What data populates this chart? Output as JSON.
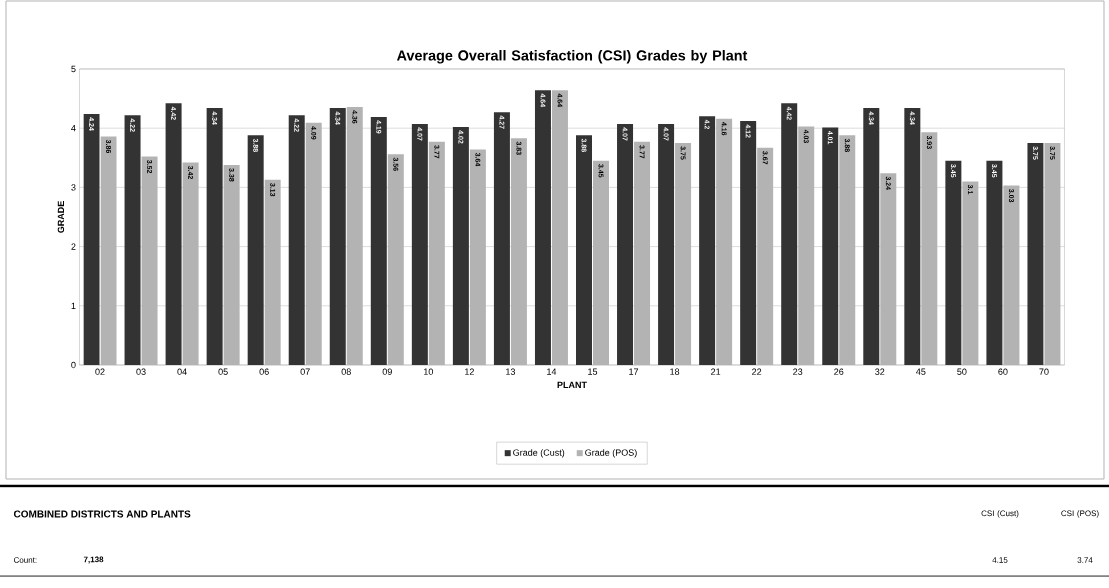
{
  "chart_data": {
    "type": "bar",
    "title": "Average Overall Satisfaction (CSI) Grades by Plant",
    "xlabel": "PLANT",
    "ylabel": "GRADE",
    "categories": [
      "02",
      "03",
      "04",
      "05",
      "06",
      "07",
      "08",
      "09",
      "10",
      "12",
      "13",
      "14",
      "15",
      "17",
      "18",
      "21",
      "22",
      "23",
      "26",
      "32",
      "45",
      "50",
      "60",
      "70"
    ],
    "series": [
      {
        "name": "Grade (Cust)",
        "color": "#333333",
        "values": [
          4.24,
          4.22,
          4.42,
          4.34,
          3.88,
          4.22,
          4.34,
          4.19,
          4.07,
          4.02,
          4.27,
          4.64,
          3.88,
          4.07,
          4.07,
          4.2,
          4.12,
          4.42,
          4.01,
          4.34,
          4.34,
          3.45,
          3.45,
          3.75
        ]
      },
      {
        "name": "Grade (POS)",
        "color": "#b3b3b3",
        "values": [
          3.86,
          3.52,
          3.42,
          3.38,
          3.13,
          4.09,
          4.36,
          3.56,
          3.77,
          3.64,
          3.83,
          4.64,
          3.45,
          3.77,
          3.75,
          4.16,
          3.67,
          4.03,
          3.88,
          3.24,
          3.93,
          3.1,
          3.03,
          3.75
        ]
      }
    ],
    "ylim": [
      0,
      5
    ],
    "yticks": [
      0,
      1,
      2,
      3,
      4,
      5
    ],
    "grid": "y",
    "legend": "bottom",
    "data_labels": true,
    "annotations": [
      "COMBINED DISTRICTS AND PLANTS",
      "CSI (Cust)",
      "CSI (POS)",
      "Count:",
      "7,138",
      "4.15",
      "3.74"
    ]
  }
}
